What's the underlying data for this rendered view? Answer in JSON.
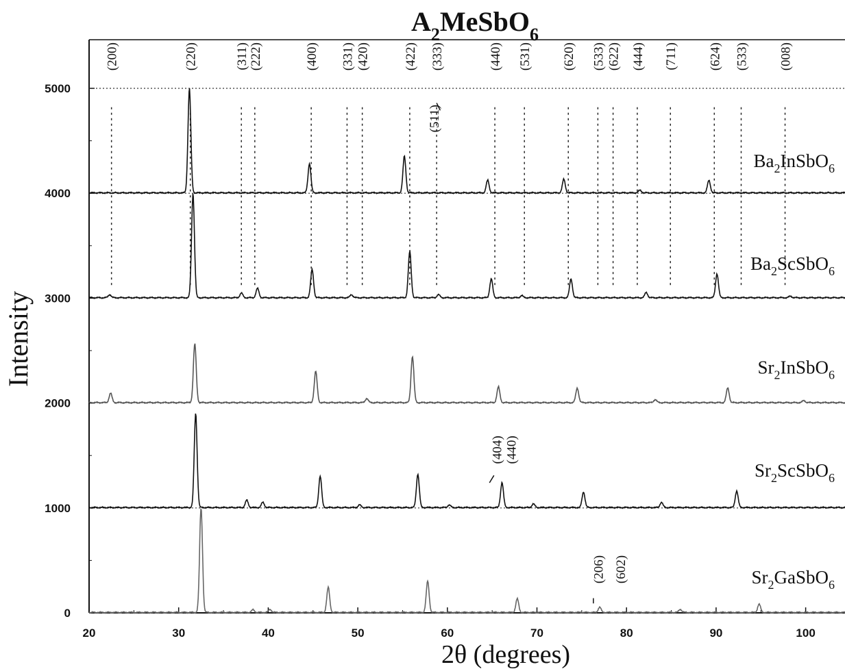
{
  "chart_data": {
    "type": "line",
    "title": {
      "base": "A",
      "sub1": "2",
      "mid": "MeSbO",
      "sub2": "6"
    },
    "xlabel": "2θ  (degrees)",
    "ylabel": "Intensity",
    "xlim": [
      20,
      105
    ],
    "ylim": [
      0,
      5500
    ],
    "x_ticks": [
      "20",
      "30",
      "40",
      "50",
      "60",
      "70",
      "80",
      "90",
      "100"
    ],
    "y_ticks": [
      "0",
      "1000",
      "2000",
      "3000",
      "4000",
      "5000"
    ],
    "grid": false,
    "series": [
      {
        "base": "Ba",
        "sub1": "2",
        "mid": "InSbO",
        "sub2": "6",
        "offset": 4000,
        "color": "#111111",
        "peaks": [
          [
            31.2,
            1000
          ],
          [
            44.6,
            280
          ],
          [
            55.2,
            350
          ],
          [
            64.5,
            120
          ],
          [
            73.0,
            130
          ],
          [
            81.5,
            25
          ],
          [
            89.2,
            120
          ]
        ]
      },
      {
        "base": "Ba",
        "sub1": "2",
        "mid": "ScSbO",
        "sub2": "6",
        "offset": 3000,
        "color": "#111111",
        "peaks": [
          [
            22.3,
            30
          ],
          [
            31.6,
            1000
          ],
          [
            37.0,
            45
          ],
          [
            38.8,
            90
          ],
          [
            44.9,
            270
          ],
          [
            49.3,
            30
          ],
          [
            55.8,
            440
          ],
          [
            59.0,
            30
          ],
          [
            64.9,
            180
          ],
          [
            68.3,
            20
          ],
          [
            73.8,
            180
          ],
          [
            82.2,
            50
          ],
          [
            90.1,
            230
          ],
          [
            98.3,
            15
          ]
        ]
      },
      {
        "base": "Sr",
        "sub1": "2",
        "mid": "InSbO",
        "sub2": "6",
        "offset": 2000,
        "color": "#555555",
        "peaks": [
          [
            22.4,
            90
          ],
          [
            31.8,
            560
          ],
          [
            45.3,
            300
          ],
          [
            51.0,
            40
          ],
          [
            56.1,
            440
          ],
          [
            65.7,
            150
          ],
          [
            74.5,
            140
          ],
          [
            83.2,
            30
          ],
          [
            91.3,
            140
          ],
          [
            99.8,
            20
          ]
        ]
      },
      {
        "base": "Sr",
        "sub1": "2",
        "mid": "ScSbO",
        "sub2": "6",
        "offset": 1000,
        "color": "#111111",
        "peaks": [
          [
            31.9,
            900
          ],
          [
            37.6,
            70
          ],
          [
            39.4,
            50
          ],
          [
            45.8,
            300
          ],
          [
            50.2,
            25
          ],
          [
            56.7,
            320
          ],
          [
            60.2,
            25
          ],
          [
            66.1,
            240
          ],
          [
            69.6,
            35
          ],
          [
            75.2,
            150
          ],
          [
            83.9,
            50
          ],
          [
            92.3,
            160
          ]
        ]
      },
      {
        "base": "Sr",
        "sub1": "2",
        "mid": "GaSbO",
        "sub2": "6",
        "offset": 0,
        "color": "#666666",
        "peaks": [
          [
            32.5,
            1000
          ],
          [
            38.3,
            25
          ],
          [
            40.2,
            30
          ],
          [
            46.7,
            240
          ],
          [
            57.8,
            300
          ],
          [
            67.8,
            130
          ],
          [
            77.0,
            50
          ],
          [
            86.0,
            30
          ],
          [
            94.8,
            80
          ]
        ]
      }
    ],
    "hkl_top": [
      {
        "label": "(200)",
        "x": 22.5
      },
      {
        "label": "(220)",
        "x": 31.3
      },
      {
        "label": "(311)",
        "x": 37.0
      },
      {
        "label": "(222)",
        "x": 38.5
      },
      {
        "label": "(400)",
        "x": 44.8
      },
      {
        "label": "(331)",
        "x": 48.8
      },
      {
        "label": "(420)",
        "x": 50.5
      },
      {
        "label": "(422)",
        "x": 55.8
      },
      {
        "label": "(333)",
        "x": 58.8
      },
      {
        "label": "(440)",
        "x": 65.3
      },
      {
        "label": "(531)",
        "x": 68.6
      },
      {
        "label": "(620)",
        "x": 73.5
      },
      {
        "label": "(533)",
        "x": 76.8
      },
      {
        "label": "(622)",
        "x": 78.5
      },
      {
        "label": "(444)",
        "x": 81.2
      },
      {
        "label": "(711)",
        "x": 84.9
      },
      {
        "label": "(624)",
        "x": 89.8
      },
      {
        "label": "(533)",
        "x": 92.8
      },
      {
        "label": "(008)",
        "x": 97.7
      }
    ],
    "hkl_extra": [
      {
        "label": "(511)",
        "x": 58.5
      },
      {
        "label": "(404)",
        "x": 65.5
      },
      {
        "label": "(440)",
        "x": 67.1
      },
      {
        "label": "(206)",
        "x": 76.8
      },
      {
        "label": "(602)",
        "x": 79.3
      }
    ]
  }
}
